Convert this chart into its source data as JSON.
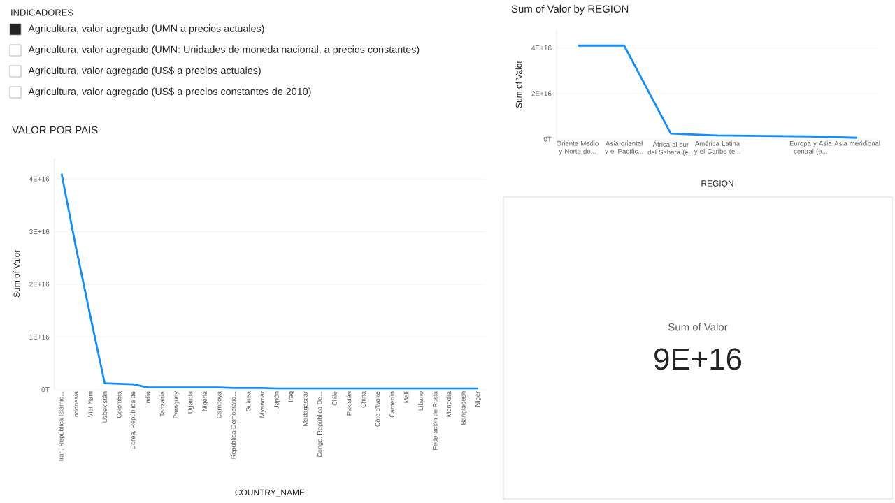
{
  "chart_data": [
    {
      "type": "other",
      "title": "INDICADORES",
      "categories": [
        "Agricultura, valor agregado (UMN a precios actuales)",
        "Agricultura, valor agregado (UMN: Unidades de moneda nacional, a precios constantes)",
        "Agricultura, valor agregado (US$ a precios actuales)",
        "Agricultura, valor agregado (US$ a precios constantes de 2010)"
      ],
      "colors": [
        "#252423",
        "#ffffff",
        "#ffffff",
        "#ffffff"
      ]
    },
    {
      "type": "line",
      "title": "Sum of Valor by REGION",
      "xlabel": "REGION",
      "ylabel": "Sum of Valor",
      "categories": [
        "Oriente Medio y Norte de...",
        "Asia oriental y el Pacífic...",
        "África al sur del Sahara (e...",
        "América Latina y el Caribe (e...",
        null,
        "Europa y Asia central (e...",
        "Asia meridional"
      ],
      "series": [
        {
          "color": "#118dff",
          "values": [
            4.1e+16,
            4.1e+16,
            2500000000000000.0,
            1600000000000000.0,
            1400000000000000.0,
            1200000000000000.0,
            600000000000000.0
          ]
        }
      ],
      "ylim": [
        0,
        4.8e+16
      ],
      "yticks": [
        {
          "value": 0,
          "label": "0T"
        },
        {
          "value": 2e+16,
          "label": "2E+16"
        },
        {
          "value": 4e+16,
          "label": "4E+16"
        }
      ],
      "grid": "y"
    },
    {
      "type": "line",
      "title": "VALOR POR PAIS",
      "xlabel": "COUNTRY_NAME",
      "ylabel": "Sum of Valor",
      "categories": [
        "Iran, República Islámic...",
        "Indonesia",
        "Viet Nam",
        "Uzbekistán",
        "Colombia",
        "Corea, República de",
        "India",
        "Tanzania",
        "Paraguay",
        "Uganda",
        "Nigeria",
        "Camboya",
        "República Democrátic...",
        "Guinea",
        "Myanmar",
        "Japón",
        "Iraq",
        "Madagascar",
        "Congo, República De...",
        "Chile",
        "Pakistán",
        "China",
        "Côte d'Ivoire",
        "Camerún",
        "Malí",
        "Líbano",
        "Federación de Rusia",
        "Mongolia",
        "Bangladesh",
        "Níger"
      ],
      "series": [
        {
          "color": "#118dff",
          "values": [
            4.1e+16,
            2.7e+16,
            1.4e+16,
            1200000000000000.0,
            1100000000000000.0,
            1000000000000000.0,
            400000000000000.0,
            400000000000000.0,
            400000000000000.0,
            400000000000000.0,
            400000000000000.0,
            400000000000000.0,
            300000000000000.0,
            300000000000000.0,
            300000000000000.0,
            200000000000000.0,
            200000000000000.0,
            200000000000000.0,
            200000000000000.0,
            200000000000000.0,
            200000000000000.0,
            200000000000000.0,
            200000000000000.0,
            200000000000000.0,
            200000000000000.0,
            200000000000000.0,
            200000000000000.0,
            200000000000000.0,
            200000000000000.0,
            200000000000000.0
          ]
        }
      ],
      "ylim": [
        0,
        4.4e+16
      ],
      "yticks": [
        {
          "value": 0,
          "label": "0T"
        },
        {
          "value": 1e+16,
          "label": "1E+16"
        },
        {
          "value": 2e+16,
          "label": "2E+16"
        },
        {
          "value": 3e+16,
          "label": "3E+16"
        },
        {
          "value": 4e+16,
          "label": "4E+16"
        }
      ],
      "grid": "y"
    },
    {
      "type": "other",
      "title": "Sum of Valor",
      "annotations": [
        "9E+16"
      ]
    }
  ]
}
